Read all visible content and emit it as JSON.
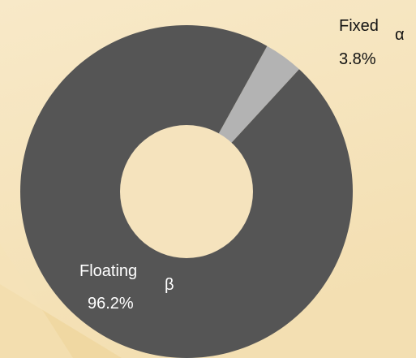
{
  "chart_data": {
    "type": "pie",
    "title": "",
    "series": [
      {
        "slices": [
          {
            "label": "Fixed",
            "subscript": "α",
            "value": 3.8,
            "value_label": "3.8%",
            "color": "#b3b3b3"
          },
          {
            "label": "Floating",
            "subscript": "β",
            "value": 96.2,
            "value_label": "96.2%",
            "color": "#555555"
          }
        ]
      }
    ],
    "donut": true,
    "legend": "none",
    "label_color": "#ffffff",
    "outside_label_color": "#111111"
  },
  "colors": {
    "background_light": "#f8e9c8",
    "background_dark": "#f0d8a2",
    "hole": "#f5e3bd"
  }
}
